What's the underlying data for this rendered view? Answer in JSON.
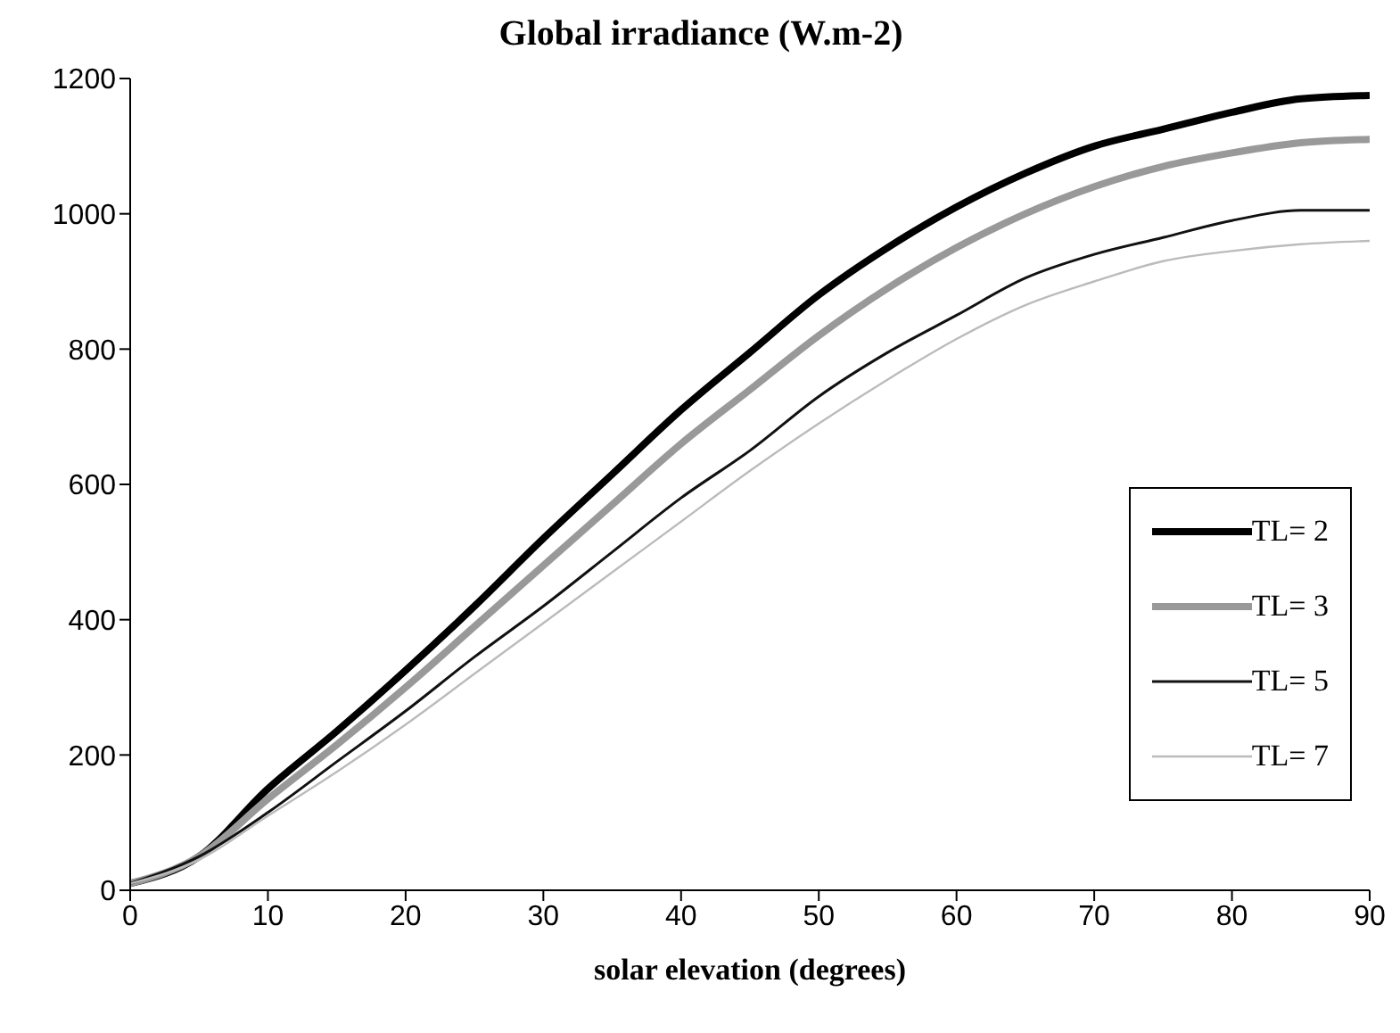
{
  "chart_data": {
    "type": "line",
    "title": "Global irradiance (W.m-2)",
    "xlabel": "solar elevation (degrees)",
    "x": [
      0,
      5,
      10,
      15,
      20,
      25,
      30,
      35,
      40,
      45,
      50,
      55,
      60,
      65,
      70,
      75,
      80,
      85,
      90
    ],
    "series": [
      {
        "name": "TL= 2",
        "color": "#000000",
        "values": [
          10,
          50,
          150,
          235,
          325,
          420,
          520,
          615,
          710,
          795,
          880,
          950,
          1010,
          1060,
          1100,
          1125,
          1150,
          1170,
          1175
        ]
      },
      {
        "name": "TL= 3",
        "color": "#999999",
        "values": [
          10,
          50,
          135,
          215,
          300,
          390,
          480,
          570,
          660,
          740,
          820,
          890,
          950,
          1000,
          1040,
          1070,
          1090,
          1105,
          1110
        ]
      },
      {
        "name": "TL= 5",
        "color": "#111111",
        "values": [
          10,
          50,
          115,
          190,
          265,
          345,
          420,
          500,
          580,
          650,
          730,
          795,
          850,
          905,
          940,
          965,
          990,
          1005,
          1005
        ]
      },
      {
        "name": "TL= 7",
        "color": "#bbbbbb",
        "values": [
          10,
          45,
          110,
          175,
          245,
          320,
          395,
          470,
          545,
          620,
          690,
          755,
          815,
          865,
          900,
          930,
          945,
          955,
          960
        ]
      }
    ],
    "xlim": [
      0,
      90
    ],
    "xticks": [
      0,
      10,
      20,
      30,
      40,
      50,
      60,
      70,
      80,
      90
    ],
    "ylim": [
      0,
      1200
    ],
    "yticks": [
      0,
      200,
      400,
      600,
      800,
      1000,
      1200
    ],
    "grid": false,
    "legend": "right",
    "marker": "none",
    "line_style": "solid"
  }
}
